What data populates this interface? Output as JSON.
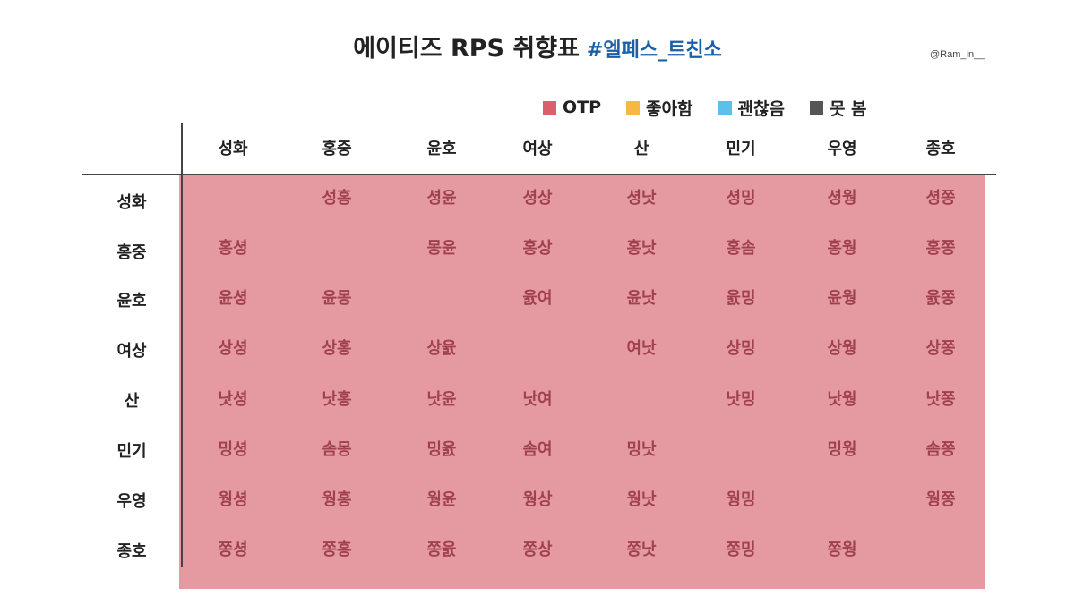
{
  "title": {
    "main": "에이티즈 RPS 취향표",
    "hashtag": "#엘페스_트친소"
  },
  "credit": "@Ram_in__",
  "legend": [
    {
      "label": "OTP",
      "color": "#d95f6d"
    },
    {
      "label": "좋아함",
      "color": "#f5b942"
    },
    {
      "label": "괜찮음",
      "color": "#5bc0ea"
    },
    {
      "label": "못 봄",
      "color": "#555555"
    }
  ],
  "colors": {
    "grid_background": "#e59aa1",
    "cell_text": "#a04050",
    "hashtag": "#1a5fa8"
  },
  "columns": [
    "성화",
    "홍중",
    "윤호",
    "여상",
    "산",
    "민기",
    "우영",
    "종호"
  ],
  "rows": [
    {
      "label": "성화",
      "cells": [
        "",
        "성홍",
        "셩윤",
        "셩상",
        "셩낫",
        "셩밍",
        "셩웡",
        "셩쫑"
      ]
    },
    {
      "label": "홍중",
      "cells": [
        "홍셩",
        "",
        "몽윤",
        "홍상",
        "홍낫",
        "홍솜",
        "홍웡",
        "홍쫑"
      ]
    },
    {
      "label": "윤호",
      "cells": [
        "윤셩",
        "윤몽",
        "",
        "윬여",
        "윤낫",
        "윬밍",
        "윤웡",
        "윬쫑"
      ]
    },
    {
      "label": "여상",
      "cells": [
        "상셩",
        "상홍",
        "상윬",
        "",
        "여낫",
        "상밍",
        "상웡",
        "상쫑"
      ]
    },
    {
      "label": "산",
      "cells": [
        "낫셩",
        "낫홍",
        "낫윤",
        "낫여",
        "",
        "낫밍",
        "낫웡",
        "낫쫑"
      ]
    },
    {
      "label": "민기",
      "cells": [
        "밍셩",
        "솜몽",
        "밍윬",
        "솜여",
        "밍낫",
        "",
        "밍웡",
        "솜쫑"
      ]
    },
    {
      "label": "우영",
      "cells": [
        "웡셩",
        "웡홍",
        "웡윤",
        "웡상",
        "웡낫",
        "웡밍",
        "",
        "웡쫑"
      ]
    },
    {
      "label": "종호",
      "cells": [
        "쫑셩",
        "쫑홍",
        "쫑윬",
        "쫑상",
        "쫑낫",
        "쫑밍",
        "쫑웡",
        ""
      ]
    }
  ]
}
